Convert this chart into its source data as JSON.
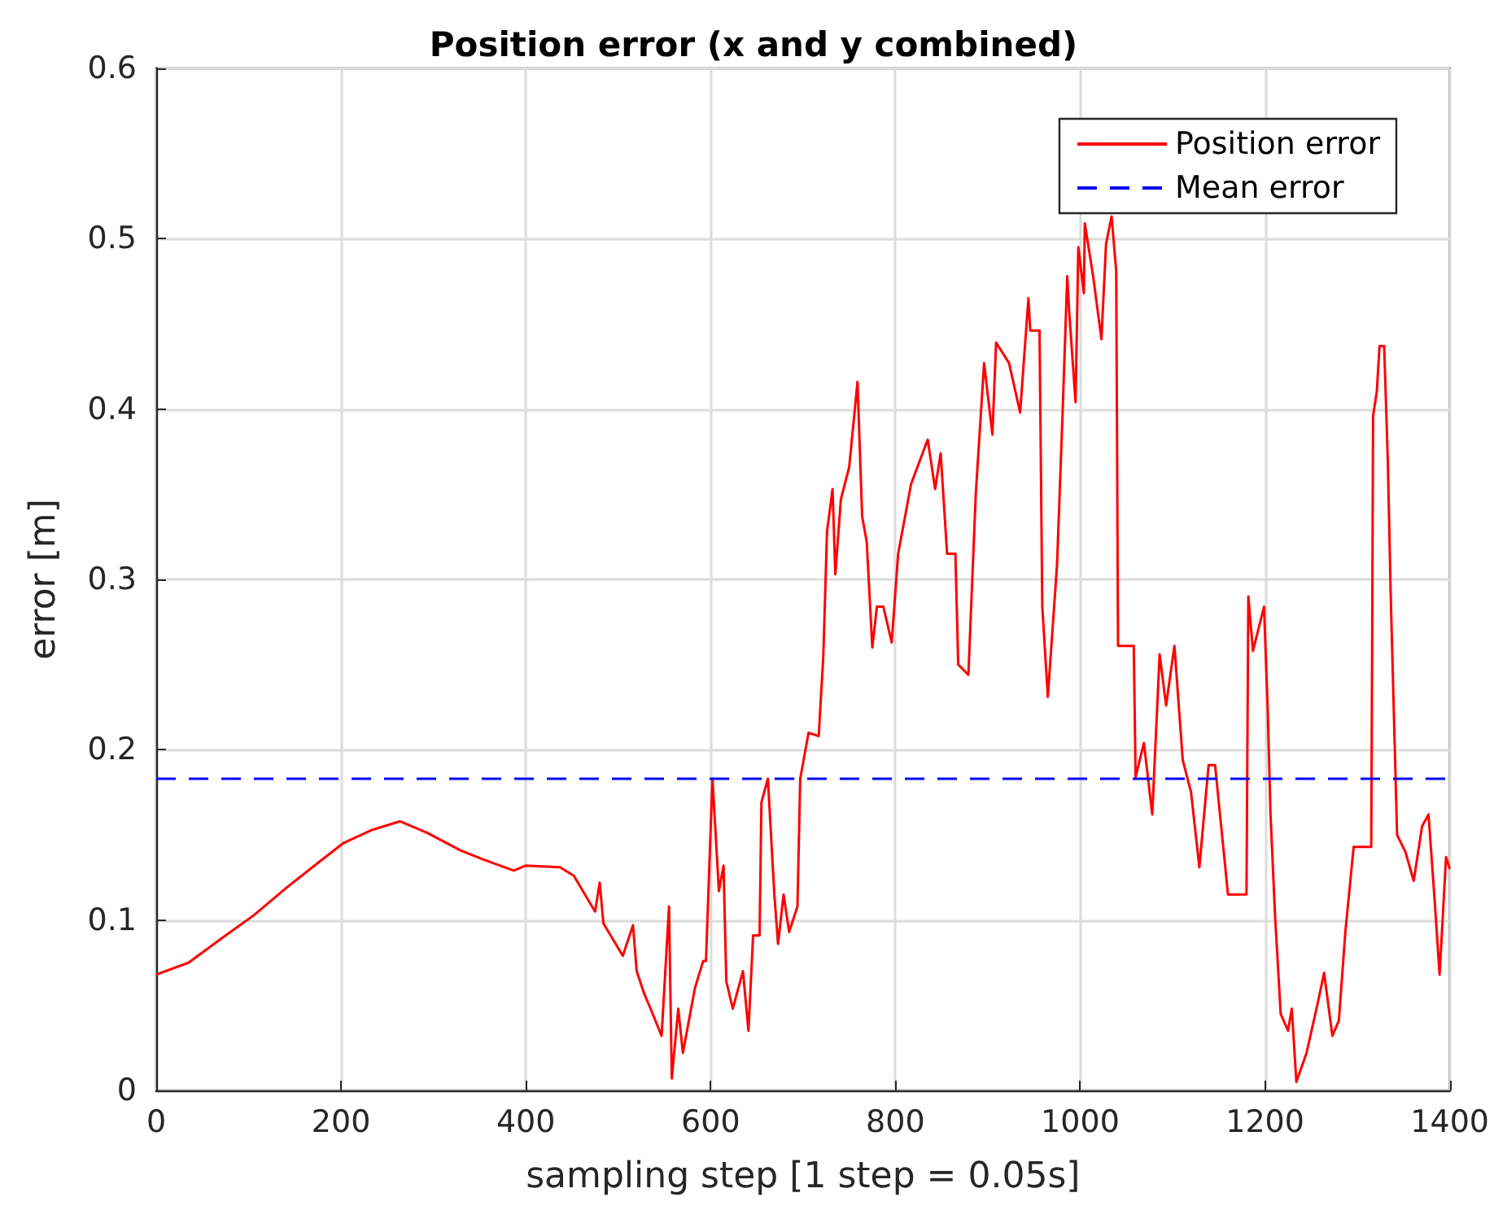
{
  "chart_data": {
    "type": "line",
    "title": "Position error (x and y combined)",
    "xlabel": "sampling step [1 step = 0.05s]",
    "ylabel": "error [m]",
    "xlim": [
      0,
      1400
    ],
    "ylim": [
      0,
      0.6
    ],
    "xticks": [
      0,
      200,
      400,
      600,
      800,
      1000,
      1200,
      1400
    ],
    "yticks": [
      0,
      0.1,
      0.2,
      0.3,
      0.4,
      0.5,
      0.6
    ],
    "grid": true,
    "legend": "top right",
    "marker": "none",
    "line_style": "solid",
    "series": [
      {
        "name": "Position error",
        "color": "#ff0000",
        "x": [
          0,
          35,
          70,
          106,
          141,
          176,
          202,
          234,
          264,
          294,
          329,
          352,
          387,
          400,
          437,
          452,
          475,
          480,
          484,
          505,
          516,
          520,
          528,
          535,
          547,
          555,
          558,
          565,
          570,
          583,
          592,
          595,
          602,
          609,
          614,
          617,
          624,
          635,
          641,
          646,
          653,
          655,
          662,
          669,
          673,
          679,
          685,
          694,
          697,
          706,
          717,
          722,
          726,
          732,
          735,
          741,
          750,
          759,
          764,
          769,
          775,
          780,
          787,
          796,
          803,
          817,
          835,
          843,
          849,
          856,
          865,
          868,
          879,
          887,
          896,
          905,
          909,
          923,
          935,
          944,
          946,
          956,
          959,
          965,
          975,
          981,
          986,
          988,
          995,
          998,
          1004,
          1005,
          1014,
          1023,
          1028,
          1034,
          1039,
          1041,
          1058,
          1060,
          1069,
          1078,
          1086,
          1093,
          1102,
          1111,
          1120,
          1129,
          1139,
          1146,
          1160,
          1180,
          1182,
          1187,
          1199,
          1203,
          1206,
          1211,
          1217,
          1225,
          1229,
          1234,
          1245,
          1257,
          1264,
          1273,
          1280,
          1287,
          1296,
          1315,
          1316,
          1317,
          1321,
          1324,
          1329,
          1333,
          1336,
          1343,
          1352,
          1361,
          1370,
          1377,
          1384,
          1389,
          1396,
          1400
        ],
        "values": [
          0.068,
          0.075,
          0.089,
          0.103,
          0.119,
          0.134,
          0.145,
          0.153,
          0.158,
          0.151,
          0.141,
          0.136,
          0.129,
          0.132,
          0.131,
          0.126,
          0.105,
          0.122,
          0.098,
          0.079,
          0.097,
          0.07,
          0.057,
          0.048,
          0.032,
          0.108,
          0.007,
          0.048,
          0.022,
          0.06,
          0.076,
          0.076,
          0.183,
          0.117,
          0.132,
          0.064,
          0.048,
          0.07,
          0.035,
          0.091,
          0.091,
          0.169,
          0.183,
          0.115,
          0.086,
          0.115,
          0.093,
          0.108,
          0.183,
          0.21,
          0.208,
          0.255,
          0.328,
          0.353,
          0.303,
          0.347,
          0.366,
          0.416,
          0.337,
          0.322,
          0.26,
          0.284,
          0.284,
          0.263,
          0.315,
          0.356,
          0.382,
          0.353,
          0.374,
          0.315,
          0.315,
          0.25,
          0.244,
          0.35,
          0.427,
          0.385,
          0.439,
          0.427,
          0.398,
          0.465,
          0.446,
          0.446,
          0.284,
          0.231,
          0.309,
          0.398,
          0.478,
          0.458,
          0.404,
          0.495,
          0.468,
          0.509,
          0.478,
          0.441,
          0.497,
          0.513,
          0.481,
          0.261,
          0.261,
          0.184,
          0.204,
          0.162,
          0.256,
          0.226,
          0.261,
          0.194,
          0.175,
          0.131,
          0.191,
          0.191,
          0.115,
          0.115,
          0.29,
          0.258,
          0.284,
          0.223,
          0.162,
          0.102,
          0.045,
          0.035,
          0.048,
          0.005,
          0.022,
          0.051,
          0.069,
          0.032,
          0.041,
          0.093,
          0.143,
          0.143,
          0.258,
          0.396,
          0.41,
          0.437,
          0.437,
          0.369,
          0.293,
          0.15,
          0.14,
          0.123,
          0.155,
          0.162,
          0.109,
          0.068,
          0.137,
          0.13
        ]
      }
    ],
    "ref_lines": [
      {
        "axis": "y",
        "value": 0.183,
        "label": "Mean error",
        "color": "#0000ff",
        "line_style": "dashed"
      }
    ]
  }
}
